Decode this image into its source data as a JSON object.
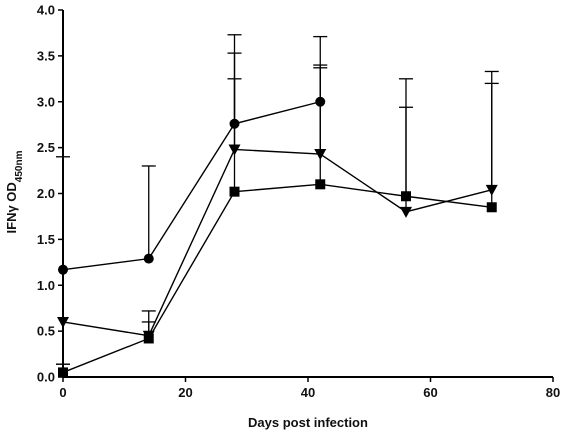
{
  "chart_data": {
    "type": "line",
    "title": "",
    "xlabel": "Days post infection",
    "ylabel_main": "IFNγ OD",
    "ylabel_sub": "450nm",
    "xlim": [
      0,
      80
    ],
    "ylim": [
      0,
      4.0
    ],
    "x_ticks": [
      0,
      20,
      40,
      60,
      80
    ],
    "y_ticks": [
      0.0,
      0.5,
      1.0,
      1.5,
      2.0,
      2.5,
      3.0,
      3.5,
      4.0
    ],
    "x_tick_labels": [
      "0",
      "20",
      "40",
      "60",
      "80"
    ],
    "y_tick_labels": [
      "0.0",
      "0.5",
      "1.0",
      "1.5",
      "2.0",
      "2.5",
      "3.0",
      "3.5",
      "4.0"
    ],
    "grid": false,
    "color": "#000000",
    "series": [
      {
        "marker": "circle",
        "x": [
          0,
          14,
          28,
          42
        ],
        "y": [
          1.17,
          1.29,
          2.76,
          3.0
        ],
        "err_upper": [
          2.4,
          2.3,
          3.53,
          3.4
        ]
      },
      {
        "marker": "square",
        "x": [
          0,
          14,
          28,
          42,
          56,
          70
        ],
        "y": [
          0.05,
          0.42,
          2.02,
          2.1,
          1.97,
          1.85
        ],
        "err_upper": [
          0.14,
          0.6,
          3.25,
          3.37,
          2.94,
          3.2
        ]
      },
      {
        "marker": "triangle-down",
        "x": [
          0,
          14,
          28,
          42,
          56,
          70
        ],
        "y": [
          0.6,
          0.45,
          2.48,
          2.43,
          1.8,
          2.04
        ],
        "err_upper": [
          0.14,
          0.72,
          3.73,
          3.71,
          3.25,
          3.33
        ]
      }
    ]
  }
}
